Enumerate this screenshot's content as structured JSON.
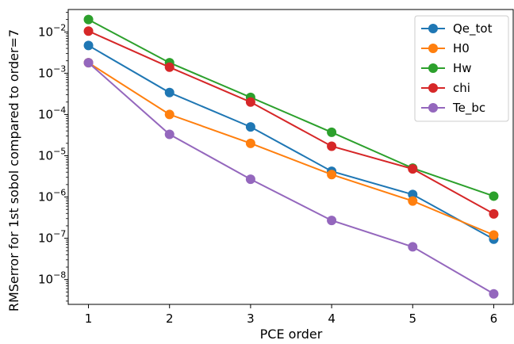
{
  "chart_data": {
    "type": "line",
    "xlabel": "PCE order",
    "ylabel": "RMSerror for 1st sobol compared to order=7",
    "x": [
      1,
      2,
      3,
      4,
      5,
      6
    ],
    "x_ticks": [
      1,
      2,
      3,
      4,
      5,
      6
    ],
    "xlim": [
      0.75,
      6.25
    ],
    "y_scale": "log",
    "ylim": [
      2.5e-09,
      0.035
    ],
    "y_ticks": [
      1e-08,
      1e-07,
      1e-06,
      1e-05,
      0.0001,
      0.001,
      0.01
    ],
    "y_tick_labels": [
      {
        "base": "10",
        "exp": "−8"
      },
      {
        "base": "10",
        "exp": "−7"
      },
      {
        "base": "10",
        "exp": "−6"
      },
      {
        "base": "10",
        "exp": "−5"
      },
      {
        "base": "10",
        "exp": "−4"
      },
      {
        "base": "10",
        "exp": "−3"
      },
      {
        "base": "10",
        "exp": "−2"
      }
    ],
    "grid": false,
    "legend_position": "top-right",
    "series": [
      {
        "name": "Qe_tot",
        "color": "#1f77b4",
        "values": [
          0.0047,
          0.00034,
          5e-05,
          4.2e-06,
          1.15e-06,
          9.5e-08
        ]
      },
      {
        "name": "H0",
        "color": "#ff7f0e",
        "values": [
          0.0018,
          0.0001,
          2e-05,
          3.5e-06,
          8e-07,
          1.2e-07
        ]
      },
      {
        "name": "Hw",
        "color": "#2ca02c",
        "values": [
          0.02,
          0.0018,
          0.00026,
          3.7e-05,
          5e-06,
          1.05e-06
        ]
      },
      {
        "name": "chi",
        "color": "#d62728",
        "values": [
          0.0105,
          0.0014,
          0.0002,
          1.7e-05,
          4.8e-06,
          3.9e-07
        ]
      },
      {
        "name": "Te_bc",
        "color": "#9467bd",
        "values": [
          0.0018,
          3.3e-05,
          2.7e-06,
          2.7e-07,
          6.2e-08,
          4.5e-09
        ]
      }
    ]
  }
}
